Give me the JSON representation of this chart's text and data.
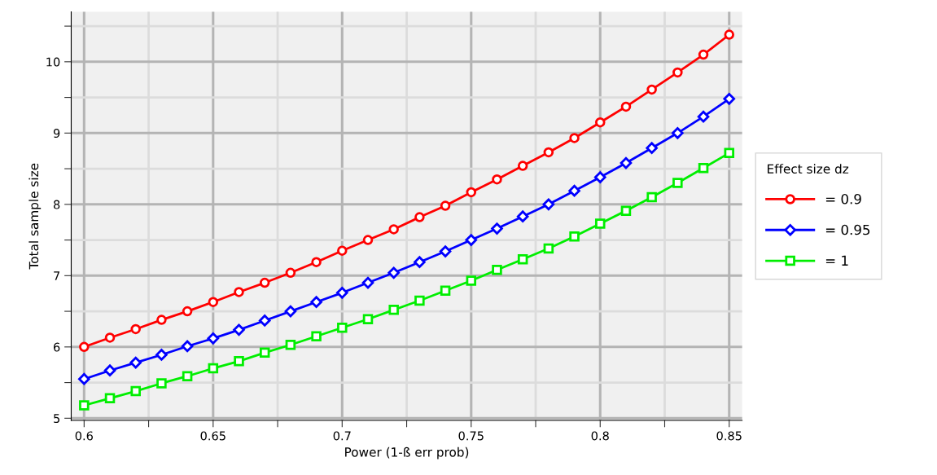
{
  "chart_data": {
    "type": "line",
    "xlabel": "Power (1-ß err prob)",
    "ylabel": "Total sample size",
    "legend_title": "Effect size dz",
    "legend": "right",
    "grid": true,
    "line_style": "solid",
    "x": [
      0.6,
      0.61,
      0.62,
      0.63,
      0.64,
      0.65,
      0.66,
      0.67,
      0.68,
      0.69,
      0.7,
      0.71,
      0.72,
      0.73,
      0.74,
      0.75,
      0.76,
      0.77,
      0.78,
      0.79,
      0.8,
      0.81,
      0.82,
      0.83,
      0.84,
      0.85
    ],
    "xlim": [
      0.595,
      0.855
    ],
    "ylim": [
      4.97,
      10.7
    ],
    "xticks": [
      0.6,
      {
        "value": 0.625,
        "label": null
      },
      0.65,
      {
        "value": 0.675,
        "label": null
      },
      0.7,
      {
        "value": 0.725,
        "label": null
      },
      0.75,
      {
        "value": 0.775,
        "label": null
      },
      0.8,
      {
        "value": 0.825,
        "label": null
      },
      0.85
    ],
    "yticks": [
      5,
      {
        "value": 5.5,
        "label": null
      },
      6,
      {
        "value": 6.5,
        "label": null
      },
      7,
      {
        "value": 7.5,
        "label": null
      },
      8,
      {
        "value": 8.5,
        "label": null
      },
      9,
      {
        "value": 9.5,
        "label": null
      },
      10,
      {
        "value": 10.5,
        "label": null
      }
    ],
    "series": [
      {
        "name": "= 0.9",
        "color": "#ff0000",
        "marker": "circle",
        "values": [
          6.0,
          6.13,
          6.25,
          6.38,
          6.5,
          6.63,
          6.77,
          6.9,
          7.04,
          7.19,
          7.35,
          7.5,
          7.65,
          7.82,
          7.98,
          8.17,
          8.35,
          8.54,
          8.73,
          8.93,
          9.15,
          9.37,
          9.61,
          9.85,
          10.1,
          10.38
        ]
      },
      {
        "name": "= 0.95",
        "color": "#0000ff",
        "marker": "diamond",
        "values": [
          5.55,
          5.67,
          5.78,
          5.89,
          6.01,
          6.12,
          6.24,
          6.37,
          6.5,
          6.63,
          6.76,
          6.9,
          7.04,
          7.19,
          7.34,
          7.5,
          7.66,
          7.83,
          8.0,
          8.19,
          8.38,
          8.58,
          8.79,
          9.0,
          9.23,
          9.48
        ]
      },
      {
        "name": "= 1",
        "color": "#00ee00",
        "marker": "square",
        "values": [
          5.18,
          5.28,
          5.38,
          5.49,
          5.59,
          5.7,
          5.8,
          5.92,
          6.03,
          6.15,
          6.27,
          6.39,
          6.52,
          6.65,
          6.79,
          6.93,
          7.08,
          7.23,
          7.38,
          7.55,
          7.73,
          7.91,
          8.1,
          8.3,
          8.51,
          8.72
        ]
      }
    ]
  }
}
